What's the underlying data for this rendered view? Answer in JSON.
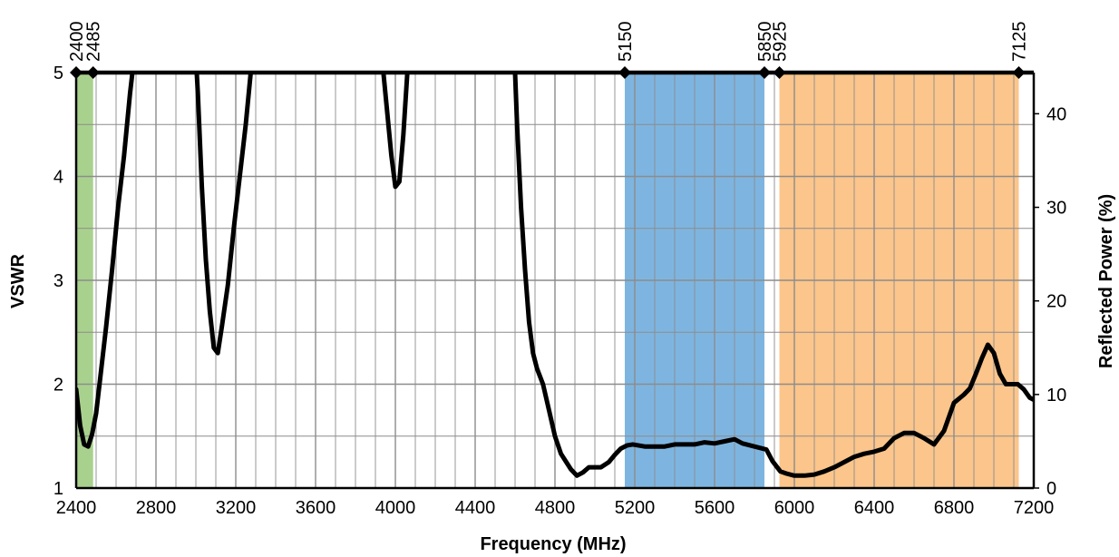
{
  "chart_data": {
    "type": "line",
    "title": "",
    "xlabel": "Frequency (MHz)",
    "ylabel": "VSWR",
    "y2label": "Reflected Power (%)",
    "xlim": [
      2400,
      7200
    ],
    "ylim": [
      1,
      5
    ],
    "y2lim": [
      0,
      44.4
    ],
    "x_ticks": [
      "2400",
      "2800",
      "3200",
      "3600",
      "4000",
      "4400",
      "4800",
      "5200",
      "5600",
      "6000",
      "6400",
      "6800",
      "7200"
    ],
    "y_ticks": [
      "1",
      "2",
      "3",
      "4",
      "5"
    ],
    "y2_ticks": [
      "0",
      "10",
      "20",
      "30",
      "40"
    ],
    "grid": true,
    "bands": [
      {
        "start": 2400,
        "end": 2485,
        "color": "#a9d18e"
      },
      {
        "start": 5150,
        "end": 5850,
        "color": "#7eb5e0"
      },
      {
        "start": 5925,
        "end": 7125,
        "color": "#fbc58b"
      }
    ],
    "markers": [
      "2400",
      "2485",
      "5150",
      "5850",
      "5925",
      "7125"
    ],
    "series": [
      {
        "color": "#000000",
        "x": [
          2400,
          2420,
          2440,
          2460,
          2480,
          2500,
          2520,
          2550,
          2580,
          2610,
          2640,
          2670,
          2700,
          2720,
          2990,
          3010,
          3030,
          3050,
          3070,
          3090,
          3110,
          3130,
          3160,
          3190,
          3220,
          3250,
          3280,
          3300,
          3920,
          3940,
          3960,
          3980,
          4000,
          4020,
          4040,
          4060,
          4075,
          4590,
          4610,
          4630,
          4650,
          4670,
          4690,
          4710,
          4740,
          4770,
          4800,
          4830,
          4860,
          4880,
          4910,
          4940,
          4970,
          5000,
          5030,
          5070,
          5100,
          5130,
          5160,
          5190,
          5220,
          5250,
          5300,
          5350,
          5400,
          5450,
          5500,
          5550,
          5600,
          5650,
          5700,
          5740,
          5780,
          5820,
          5860,
          5890,
          5930,
          5960,
          6000,
          6050,
          6100,
          6150,
          6200,
          6250,
          6300,
          6350,
          6400,
          6450,
          6500,
          6550,
          6600,
          6650,
          6700,
          6750,
          6800,
          6850,
          6880,
          6910,
          6940,
          6970,
          7000,
          7030,
          7060,
          7090,
          7120,
          7150,
          7180,
          7200
        ],
        "values": [
          1.95,
          1.6,
          1.42,
          1.4,
          1.52,
          1.72,
          2.05,
          2.55,
          3.1,
          3.7,
          4.2,
          4.8,
          5.3,
          5.5,
          5.5,
          4.8,
          3.9,
          3.2,
          2.7,
          2.35,
          2.3,
          2.55,
          2.95,
          3.5,
          4.0,
          4.5,
          5.1,
          5.5,
          5.5,
          5.0,
          4.6,
          4.2,
          3.9,
          3.95,
          4.4,
          5.0,
          5.5,
          5.5,
          4.5,
          3.7,
          3.1,
          2.6,
          2.3,
          2.15,
          2.0,
          1.75,
          1.5,
          1.33,
          1.24,
          1.18,
          1.12,
          1.15,
          1.2,
          1.2,
          1.2,
          1.25,
          1.32,
          1.38,
          1.41,
          1.42,
          1.41,
          1.4,
          1.4,
          1.4,
          1.42,
          1.42,
          1.42,
          1.44,
          1.43,
          1.45,
          1.47,
          1.43,
          1.41,
          1.39,
          1.37,
          1.26,
          1.16,
          1.14,
          1.12,
          1.12,
          1.13,
          1.16,
          1.2,
          1.25,
          1.3,
          1.33,
          1.35,
          1.38,
          1.48,
          1.53,
          1.53,
          1.48,
          1.42,
          1.55,
          1.82,
          1.9,
          1.96,
          2.1,
          2.25,
          2.38,
          2.3,
          2.1,
          2.0,
          2.0,
          2.0,
          1.95,
          1.87,
          1.85
        ]
      }
    ]
  }
}
